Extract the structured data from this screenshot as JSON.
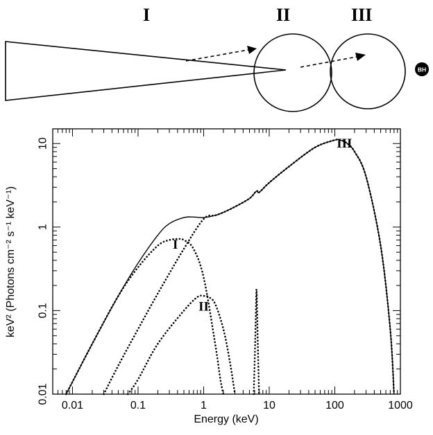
{
  "schematic": {
    "labels": [
      "I",
      "II",
      "III"
    ],
    "bh_label": "BH"
  },
  "chart_data": {
    "type": "line",
    "xlabel": "Energy (keV)",
    "ylabel": "keV² (Photons cm⁻² s⁻¹ keV⁻¹)",
    "xscale": "log",
    "yscale": "log",
    "xlim": [
      0.005,
      1000
    ],
    "ylim": [
      0.01,
      15
    ],
    "x_ticks": [
      "0.01",
      "0.1",
      "1",
      "10",
      "100",
      "1000"
    ],
    "y_ticks": [
      "0.01",
      "0.1",
      "1",
      "10"
    ],
    "series": [
      {
        "name": "",
        "style": "solid",
        "x": [
          0.008,
          0.01,
          0.02,
          0.05,
          0.1,
          0.2,
          0.3,
          0.5,
          0.7,
          1,
          1.5,
          2,
          3,
          5,
          6.4,
          7,
          10,
          20,
          50,
          100,
          120,
          150,
          200,
          300,
          500,
          700,
          800
        ],
        "y": [
          0.01,
          0.014,
          0.04,
          0.15,
          0.37,
          0.8,
          1.1,
          1.3,
          1.32,
          1.3,
          1.38,
          1.5,
          1.75,
          2.2,
          2.7,
          2.6,
          3.4,
          5.3,
          9.0,
          11.0,
          11.0,
          10.2,
          8.0,
          4.0,
          0.6,
          0.06,
          0.01
        ]
      },
      {
        "name": "I",
        "style": "dotted",
        "x": [
          0.008,
          0.02,
          0.05,
          0.1,
          0.2,
          0.3,
          0.4,
          0.5,
          0.7,
          1,
          1.5,
          1.8,
          2
        ],
        "y": [
          0.01,
          0.04,
          0.15,
          0.33,
          0.6,
          0.7,
          0.72,
          0.7,
          0.55,
          0.25,
          0.04,
          0.015,
          0.01
        ]
      },
      {
        "name": "II",
        "style": "dotted",
        "x": [
          0.07,
          0.1,
          0.2,
          0.5,
          0.8,
          1,
          1.2,
          1.5,
          2,
          2.5,
          3
        ],
        "y": [
          0.01,
          0.015,
          0.04,
          0.1,
          0.145,
          0.15,
          0.145,
          0.12,
          0.06,
          0.025,
          0.01
        ]
      },
      {
        "name": "III",
        "style": "dotted",
        "x": [
          0.03,
          0.05,
          0.1,
          0.2,
          0.5,
          1,
          1.5,
          2,
          3,
          5,
          6.4,
          7,
          10,
          20,
          50,
          100,
          120,
          150,
          200,
          300,
          500,
          700,
          800
        ],
        "y": [
          0.01,
          0.022,
          0.06,
          0.16,
          0.55,
          1.25,
          1.38,
          1.5,
          1.75,
          2.2,
          2.7,
          2.6,
          3.4,
          5.3,
          9.0,
          11.0,
          11.0,
          10.2,
          8.0,
          4.0,
          0.6,
          0.06,
          0.01
        ]
      },
      {
        "name": "",
        "style": "dotted",
        "x": [
          5.8,
          6.1,
          6.3,
          6.4,
          6.5,
          6.7,
          7.0
        ],
        "y": [
          0.01,
          0.04,
          0.12,
          0.18,
          0.12,
          0.04,
          0.01
        ]
      }
    ],
    "annotations": [
      {
        "text": "III",
        "x": 140,
        "y": 9.0
      },
      {
        "text": "I",
        "x": 0.37,
        "y": 0.55
      },
      {
        "text": "II",
        "x": 1.0,
        "y": 0.1
      }
    ]
  }
}
